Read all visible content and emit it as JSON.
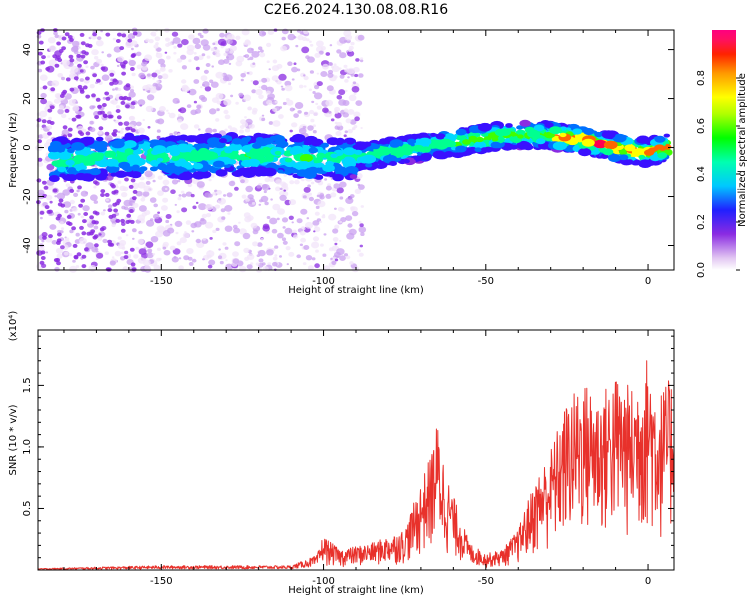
{
  "title": "C2E6.2024.130.08.08.R16",
  "chart_data": [
    {
      "type": "heatmap",
      "xlabel": "Height of straight line (km)",
      "ylabel": "Frequency (Hz)",
      "xlim": [
        -188,
        8
      ],
      "ylim": [
        -50,
        48
      ],
      "xticks": [
        -150,
        -100,
        -50,
        0
      ],
      "yticks": [
        40,
        20,
        0,
        -20,
        -40
      ],
      "grid": false,
      "ridge": {
        "x": [
          -175,
          -160,
          -145,
          -130,
          -115,
          -100,
          -90,
          -80,
          -70,
          -60,
          -50,
          -40,
          -30,
          -20,
          -10,
          0,
          5
        ],
        "y": [
          -5,
          -3,
          -4,
          -3,
          -3,
          -5,
          -4,
          -2,
          0,
          2,
          4,
          5,
          5,
          3,
          0,
          -2,
          0
        ]
      },
      "colorbar": {
        "label": "Normalized spectral amplitude",
        "range": [
          0,
          1
        ],
        "ticks": [
          0.0,
          0.2,
          0.4,
          0.6,
          0.8
        ],
        "tick_labels": [
          "0.0",
          "0.2",
          "0.4",
          "0.6",
          "0.8"
        ]
      }
    },
    {
      "type": "line",
      "xlabel": "Height of straight line (km)",
      "ylabel": "SNR (10 * v/v)",
      "y_multiplier": "(x10⁴)",
      "xlim": [
        -188,
        8
      ],
      "ylim": [
        0,
        1.95
      ],
      "xticks": [
        -150,
        -100,
        -50,
        0
      ],
      "yticks": [
        0.5,
        1.0,
        1.5
      ],
      "ytick_labels": [
        "0.5",
        "1.0",
        "1.5"
      ],
      "color": "#e8312b",
      "grid": false,
      "envelope": {
        "x": [
          -188,
          -170,
          -150,
          -130,
          -110,
          -102,
          -100,
          -95,
          -85,
          -75,
          -70,
          -67,
          -65,
          -62,
          -60,
          -55,
          -50,
          -45,
          -40,
          -38,
          -35,
          -30,
          -25,
          -20,
          -15,
          -10,
          -5,
          0,
          3,
          8
        ],
        "y": [
          0.01,
          0.02,
          0.03,
          0.03,
          0.03,
          0.1,
          0.25,
          0.15,
          0.2,
          0.3,
          0.65,
          0.85,
          1.1,
          0.7,
          0.55,
          0.2,
          0.12,
          0.15,
          0.3,
          0.45,
          0.65,
          0.9,
          1.25,
          1.4,
          1.3,
          1.45,
          1.35,
          1.6,
          1.3,
          1.45
        ]
      }
    }
  ]
}
